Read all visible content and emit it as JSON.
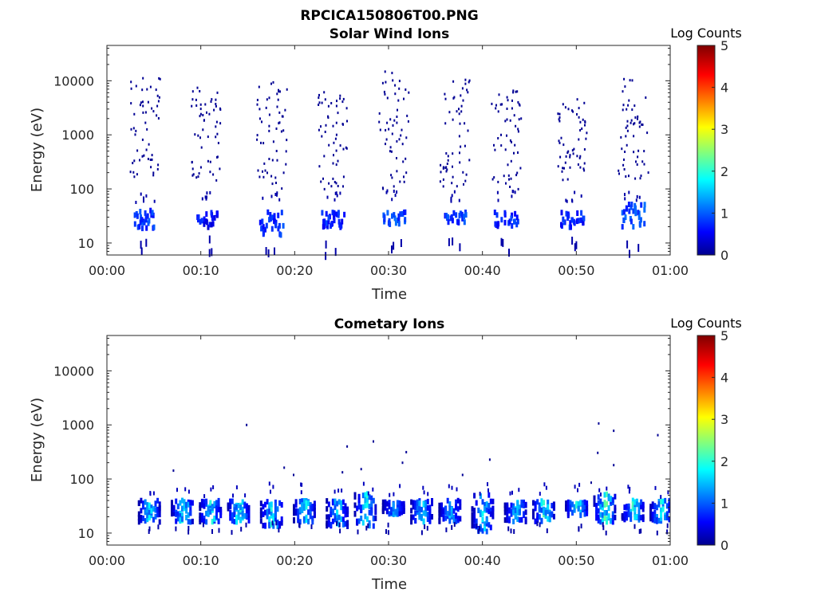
{
  "figure": {
    "title": "RPCICA150806T00.PNG"
  },
  "chart_data": [
    {
      "type": "heatmap",
      "title": "Solar Wind Ions",
      "xlabel": "Time",
      "ylabel": "Energy (eV)",
      "x_ticks": [
        "00:00",
        "00:10",
        "00:20",
        "00:30",
        "00:40",
        "00:50",
        "01:00"
      ],
      "xlim_minutes": [
        0,
        60
      ],
      "yscale": "log",
      "y_ticks": [
        "10",
        "100",
        "1000",
        "10000"
      ],
      "ylim": [
        6,
        45000
      ],
      "colorbar": {
        "label": "Log Counts",
        "ticks": [
          "0",
          "1",
          "2",
          "3",
          "4",
          "5"
        ],
        "range": [
          0,
          5
        ],
        "colormap": "jet"
      },
      "bursts": [
        {
          "t": 4.0,
          "low_band": [
            20,
            45
          ],
          "low_level": 0.6,
          "high_range": [
            150,
            12000
          ]
        },
        {
          "t": 10.5,
          "low_band": [
            22,
            42
          ],
          "low_level": 0.4,
          "high_range": [
            150,
            8000
          ]
        },
        {
          "t": 17.5,
          "low_band": [
            15,
            42
          ],
          "low_level": 0.6,
          "high_range": [
            100,
            10000
          ]
        },
        {
          "t": 24.0,
          "low_band": [
            22,
            42
          ],
          "low_level": 0.5,
          "high_range": [
            100,
            7000
          ]
        },
        {
          "t": 30.5,
          "low_band": [
            25,
            42
          ],
          "low_level": 0.7,
          "high_range": [
            100,
            17000
          ]
        },
        {
          "t": 37.0,
          "low_band": [
            25,
            42
          ],
          "low_level": 0.6,
          "high_range": [
            100,
            12000
          ]
        },
        {
          "t": 42.5,
          "low_band": [
            22,
            42
          ],
          "low_level": 0.5,
          "high_range": [
            100,
            7000
          ]
        },
        {
          "t": 49.5,
          "low_band": [
            22,
            42
          ],
          "low_level": 0.5,
          "high_range": [
            150,
            5000
          ]
        },
        {
          "t": 56.0,
          "low_band": [
            22,
            60
          ],
          "low_level": 0.7,
          "high_range": [
            150,
            12000
          ]
        }
      ]
    },
    {
      "type": "heatmap",
      "title": "Cometary Ions",
      "xlabel": "Time",
      "ylabel": "Energy (eV)",
      "x_ticks": [
        "00:00",
        "00:10",
        "00:20",
        "00:30",
        "00:40",
        "00:50",
        "01:00"
      ],
      "xlim_minutes": [
        0,
        60
      ],
      "yscale": "log",
      "y_ticks": [
        "10",
        "100",
        "1000",
        "10000"
      ],
      "ylim": [
        6,
        45000
      ],
      "colorbar": {
        "label": "Log Counts",
        "ticks": [
          "0",
          "1",
          "2",
          "3",
          "4",
          "5"
        ],
        "range": [
          0,
          5
        ],
        "colormap": "jet"
      },
      "bursts": [
        {
          "t": 4.5,
          "band": [
            18,
            45
          ],
          "peak_level": 1.8
        },
        {
          "t": 8.0,
          "band": [
            18,
            45
          ],
          "peak_level": 2.2
        },
        {
          "t": 11.0,
          "band": [
            18,
            45
          ],
          "peak_level": 2.0
        },
        {
          "t": 14.0,
          "band": [
            18,
            45
          ],
          "peak_level": 2.2
        },
        {
          "t": 17.5,
          "band": [
            15,
            45
          ],
          "peak_level": 2.0
        },
        {
          "t": 21.0,
          "band": [
            18,
            45
          ],
          "peak_level": 2.0
        },
        {
          "t": 24.5,
          "band": [
            15,
            45
          ],
          "peak_level": 1.8
        },
        {
          "t": 27.5,
          "band": [
            15,
            60
          ],
          "peak_level": 2.2
        },
        {
          "t": 30.5,
          "band": [
            25,
            42
          ],
          "peak_level": 1.5
        },
        {
          "t": 33.5,
          "band": [
            18,
            45
          ],
          "peak_level": 1.8
        },
        {
          "t": 36.5,
          "band": [
            18,
            45
          ],
          "peak_level": 1.6
        },
        {
          "t": 40.0,
          "band": [
            12,
            60
          ],
          "peak_level": 1.8
        },
        {
          "t": 43.5,
          "band": [
            18,
            42
          ],
          "peak_level": 1.8
        },
        {
          "t": 46.5,
          "band": [
            18,
            45
          ],
          "peak_level": 2.2
        },
        {
          "t": 50.0,
          "band": [
            22,
            42
          ],
          "peak_level": 2.2
        },
        {
          "t": 53.0,
          "band": [
            18,
            60
          ],
          "peak_level": 2.4
        },
        {
          "t": 56.0,
          "band": [
            18,
            45
          ],
          "peak_level": 2.2
        },
        {
          "t": 59.0,
          "band": [
            15,
            45
          ],
          "peak_level": 2.0
        }
      ],
      "sparse_points": [
        {
          "t": 14.8,
          "e": 1050
        },
        {
          "t": 7.0,
          "e": 150
        },
        {
          "t": 18.8,
          "e": 170
        },
        {
          "t": 19.8,
          "e": 125
        },
        {
          "t": 25.5,
          "e": 420
        },
        {
          "t": 28.3,
          "e": 520
        },
        {
          "t": 27.0,
          "e": 160
        },
        {
          "t": 25.0,
          "e": 140
        },
        {
          "t": 31.8,
          "e": 330
        },
        {
          "t": 31.4,
          "e": 210
        },
        {
          "t": 37.8,
          "e": 125
        },
        {
          "t": 40.7,
          "e": 240
        },
        {
          "t": 52.3,
          "e": 1120
        },
        {
          "t": 53.9,
          "e": 820
        },
        {
          "t": 52.2,
          "e": 320
        },
        {
          "t": 53.9,
          "e": 190
        },
        {
          "t": 58.6,
          "e": 680
        },
        {
          "t": 51.5,
          "e": 90
        }
      ]
    }
  ]
}
